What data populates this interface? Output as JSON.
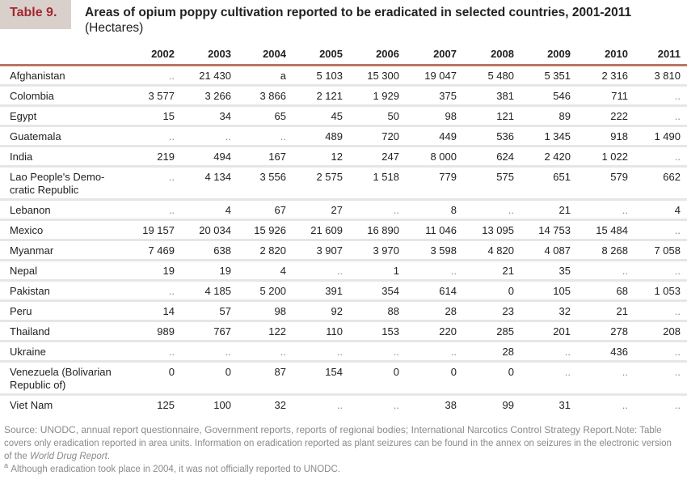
{
  "badge": "Table 9.",
  "title": "Areas of opium poppy cultivation reported to be eradicated in selected countries, 2001-2011",
  "unit": "(Hectares)",
  "columns": [
    "2002",
    "2003",
    "2004",
    "2005",
    "2006",
    "2007",
    "2008",
    "2009",
    "2010",
    "2011"
  ],
  "rows": [
    {
      "country": "Afghanistan",
      "values": [
        "..",
        "21 430",
        "a",
        "5 103",
        "15 300",
        "19 047",
        "5 480",
        "5 351",
        "2 316",
        "3 810"
      ]
    },
    {
      "country": "Colombia",
      "values": [
        "3 577",
        "3 266",
        "3 866",
        "2 121",
        "1 929",
        "375",
        "381",
        "546",
        "711",
        ".."
      ]
    },
    {
      "country": "Egypt",
      "values": [
        "15",
        "34",
        "65",
        "45",
        "50",
        "98",
        "121",
        "89",
        "222",
        ".."
      ]
    },
    {
      "country": "Guatemala",
      "values": [
        "..",
        "..",
        "..",
        "489",
        "720",
        "449",
        "536",
        "1 345",
        "918",
        "1 490"
      ]
    },
    {
      "country": "India",
      "values": [
        "219",
        "494",
        "167",
        "12",
        "247",
        "8 000",
        "624",
        "2 420",
        "1 022",
        ".."
      ]
    },
    {
      "country": "Lao People's Demo-cratic Republic",
      "values": [
        "..",
        "4 134",
        "3 556",
        "2 575",
        "1 518",
        "779",
        "575",
        "651",
        "579",
        "662"
      ]
    },
    {
      "country": "Lebanon",
      "values": [
        "..",
        "4",
        "67",
        "27",
        "..",
        "8",
        "..",
        "21",
        "..",
        "4"
      ]
    },
    {
      "country": "Mexico",
      "values": [
        "19 157",
        "20 034",
        "15 926",
        "21 609",
        "16 890",
        "11 046",
        "13 095",
        "14 753",
        "15 484",
        ".."
      ]
    },
    {
      "country": "Myanmar",
      "values": [
        "7 469",
        "638",
        "2 820",
        "3 907",
        "3 970",
        "3 598",
        "4 820",
        "4 087",
        "8 268",
        "7 058"
      ]
    },
    {
      "country": "Nepal",
      "values": [
        "19",
        "19",
        "4",
        "..",
        "1",
        "..",
        "21",
        "35",
        "..",
        ".."
      ]
    },
    {
      "country": "Pakistan",
      "values": [
        "..",
        "4 185",
        "5 200",
        "391",
        "354",
        "614",
        "0",
        "105",
        "68",
        "1 053"
      ]
    },
    {
      "country": "Peru",
      "values": [
        "14",
        "57",
        "98",
        "92",
        "88",
        "28",
        "23",
        "32",
        "21",
        ".."
      ]
    },
    {
      "country": "Thailand",
      "values": [
        "989",
        "767",
        "122",
        "110",
        "153",
        "220",
        "285",
        "201",
        "278",
        "208"
      ]
    },
    {
      "country": "Ukraine",
      "values": [
        "..",
        "..",
        "..",
        "..",
        "..",
        "..",
        "28",
        "..",
        "436",
        ".."
      ]
    },
    {
      "country": "Venezuela (Bolivarian Republic of)",
      "values": [
        "0",
        "0",
        "87",
        "154",
        "0",
        "0",
        "0",
        "..",
        "..",
        ".."
      ]
    },
    {
      "country": "Viet Nam",
      "values": [
        "125",
        "100",
        "32",
        "..",
        "..",
        "38",
        "99",
        "31",
        "..",
        ".."
      ]
    }
  ],
  "footer": {
    "source": "Source: UNODC, annual report questionnaire, Government reports, reports of regional bodies; International Narcotics Control Strategy Report.",
    "note": "Note: Table covers only eradication reported in area units. Information on eradication reported as plant seizures can be found in the annex on seizures in the electronic version of the ",
    "note_italic": "World Drug Report",
    "note_end": ".",
    "footnote_mark": "a",
    "footnote": "Although eradication took place in 2004, it was not officially reported to UNODC."
  }
}
